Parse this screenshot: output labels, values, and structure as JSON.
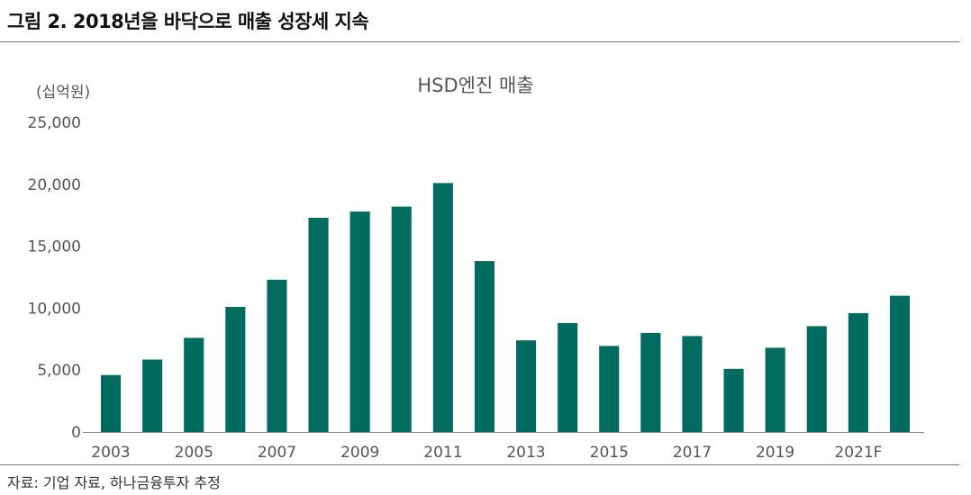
{
  "figure": {
    "title": "그림 2. 2018년을 바닥으로 매출 성장세 지속",
    "source": "자료: 기업 자료, 하나금융투자 추정"
  },
  "chart_data": {
    "type": "bar",
    "title": "HSD엔진 매출",
    "unit_label": "(십억원)",
    "categories": [
      "2003",
      "2004",
      "2005",
      "2006",
      "2007",
      "2008",
      "2009",
      "2010",
      "2011",
      "2012",
      "2013",
      "2014",
      "2015",
      "2016",
      "2017",
      "2018",
      "2019",
      "2020",
      "2021F",
      "2022F"
    ],
    "x_tick_labels": [
      "2003",
      "",
      "2005",
      "",
      "2007",
      "",
      "2009",
      "",
      "2011",
      "",
      "2013",
      "",
      "2015",
      "",
      "2017",
      "",
      "2019",
      "",
      "2021F",
      ""
    ],
    "values": [
      4600,
      5850,
      7600,
      10100,
      12300,
      17300,
      17800,
      18200,
      20100,
      13800,
      7400,
      8800,
      6950,
      8000,
      7750,
      5100,
      6800,
      8550,
      9600,
      11000
    ],
    "y_ticks": [
      0,
      5000,
      10000,
      15000,
      20000,
      25000
    ],
    "y_tick_labels": [
      "0",
      "5,000",
      "10,000",
      "15,000",
      "20,000",
      "25,000"
    ],
    "ylim": [
      0,
      25000
    ],
    "bar_color": "#006b5f",
    "grid": false,
    "legend": "none"
  }
}
